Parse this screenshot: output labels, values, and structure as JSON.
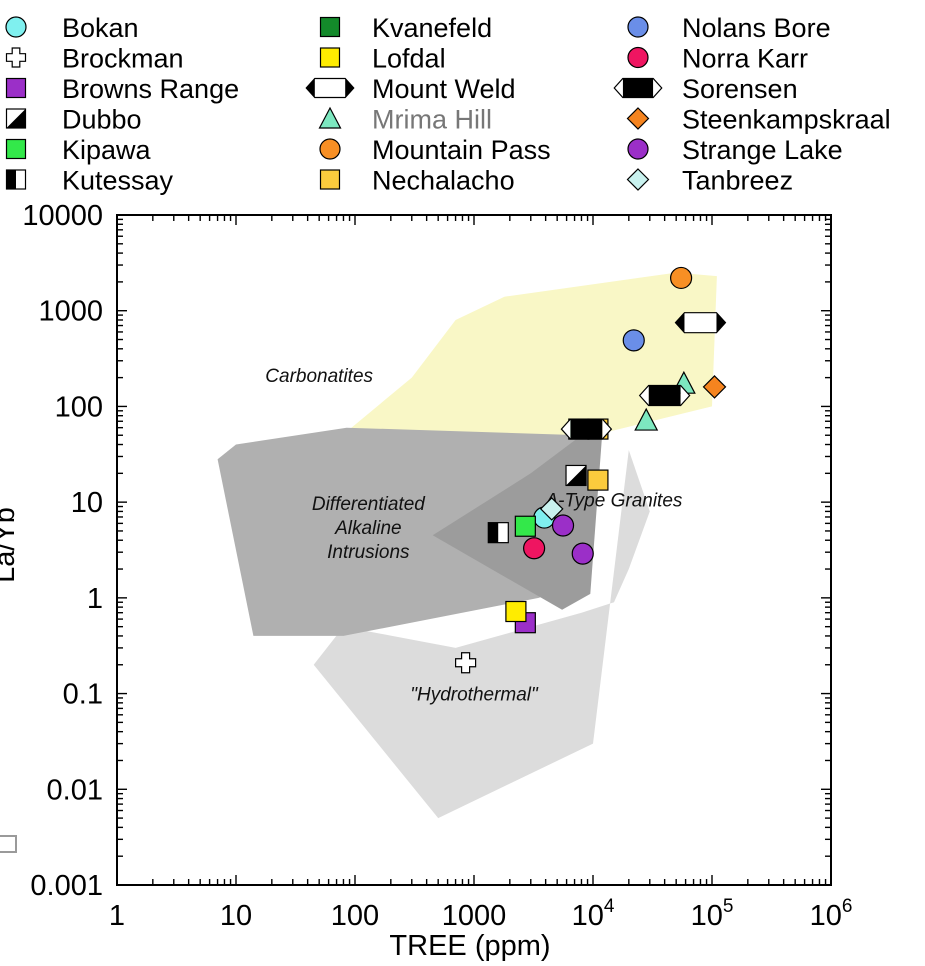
{
  "chart_data": {
    "type": "scatter",
    "xlabel": "TREE (ppm)",
    "ylabel": "La/Yb",
    "xscale": "log",
    "yscale": "log",
    "xlim": [
      1,
      1000000
    ],
    "ylim": [
      0.001,
      10000
    ],
    "x_ticks": [
      {
        "value": 1,
        "label": "1"
      },
      {
        "value": 10,
        "label": "10"
      },
      {
        "value": 100,
        "label": "100"
      },
      {
        "value": 1000,
        "label": "1000"
      },
      {
        "value": 10000,
        "base": "10",
        "exp": "4"
      },
      {
        "value": 100000,
        "base": "10",
        "exp": "5"
      },
      {
        "value": 1000000,
        "base": "10",
        "exp": "6"
      }
    ],
    "y_ticks": [
      {
        "value": 0.001,
        "label": "0.001"
      },
      {
        "value": 0.01,
        "label": "0.01"
      },
      {
        "value": 0.1,
        "label": "0.1"
      },
      {
        "value": 1,
        "label": "1"
      },
      {
        "value": 10,
        "label": "10"
      },
      {
        "value": 100,
        "label": "100"
      },
      {
        "value": 1000,
        "label": "1000"
      },
      {
        "value": 10000,
        "label": "10000"
      }
    ],
    "legend_position": "top",
    "regions": [
      {
        "name": "Carbonatites",
        "color": "#f9f7c6",
        "label_at": [
          50,
          180
        ],
        "polygon": [
          [
            40,
            25
          ],
          [
            300,
            200
          ],
          [
            700,
            800
          ],
          [
            1800,
            1400
          ],
          [
            50000,
            2500
          ],
          [
            110000,
            2300
          ],
          [
            100000,
            100
          ],
          [
            14000,
            55
          ],
          [
            8000,
            45
          ],
          [
            5000,
            20
          ],
          [
            1000,
            15
          ],
          [
            150,
            14
          ],
          [
            40,
            25
          ]
        ]
      },
      {
        "name": "Hydrothermal",
        "display": "\"Hydrothermal\"",
        "color": "#dcdcdc",
        "label_at": [
          1000,
          0.085
        ],
        "polygon": [
          [
            500,
            0.005
          ],
          [
            10000,
            0.03
          ],
          [
            20000,
            35
          ],
          [
            30000,
            8
          ],
          [
            20000,
            2
          ],
          [
            15000,
            0.9
          ],
          [
            8000,
            0.7
          ],
          [
            700,
            0.3
          ],
          [
            80,
            0.5
          ],
          [
            45,
            0.2
          ],
          [
            500,
            0.005
          ]
        ]
      },
      {
        "name": "Differentiated Alkaline Intrusions",
        "display_lines": [
          "Differentiated",
          "Alkaline",
          "Intrusions"
        ],
        "color": "#b0b0b0",
        "label_at": [
          25,
          10
        ],
        "polygon": [
          [
            7,
            28
          ],
          [
            10,
            40
          ],
          [
            85,
            60
          ],
          [
            8000,
            50
          ],
          [
            8000,
            1.5
          ],
          [
            3500,
            1
          ],
          [
            80,
            0.4
          ],
          [
            14,
            0.4
          ],
          [
            7,
            28
          ]
        ]
      },
      {
        "name": "A-Type Granites",
        "color": "#9c9c9c",
        "label_at": [
          15000,
          9
        ],
        "polygon": [
          [
            450,
            4.5
          ],
          [
            3000,
            20
          ],
          [
            8000,
            50
          ],
          [
            12000,
            55
          ],
          [
            9500,
            1.1
          ],
          [
            5500,
            0.75
          ],
          [
            450,
            4.5
          ]
        ]
      }
    ],
    "series": [
      {
        "name": "Bokan",
        "marker": "circle",
        "fill": "#7ff0ef",
        "fill2": "",
        "points": [
          [
            3900,
            6.9
          ]
        ]
      },
      {
        "name": "Brockman",
        "marker": "plus",
        "fill": "#ffffff",
        "fill2": "",
        "points": [
          [
            850,
            0.21
          ]
        ]
      },
      {
        "name": "Browns Range",
        "marker": "square",
        "fill": "#9b2fc8",
        "fill2": "",
        "points": [
          [
            2700,
            0.55
          ]
        ]
      },
      {
        "name": "Dubbo",
        "marker": "square-diag",
        "fill": "#ffffff",
        "fill2": "#000000",
        "points": [
          [
            7200,
            19
          ]
        ]
      },
      {
        "name": "Kipawa",
        "marker": "square",
        "fill": "#33e84a",
        "fill2": "",
        "points": [
          [
            2700,
            5.6
          ]
        ]
      },
      {
        "name": "Kutessay",
        "marker": "square-half",
        "fill": "#000000",
        "fill2": "#ffffff",
        "points": [
          [
            1600,
            4.8
          ]
        ]
      },
      {
        "name": "Kvanefeld",
        "marker": "square",
        "fill": "#138a2a",
        "fill2": "",
        "points": [
          [
            7600,
            58
          ]
        ]
      },
      {
        "name": "Lofdal",
        "marker": "square",
        "fill": "#ffec00",
        "fill2": "",
        "points": [
          [
            2250,
            0.72
          ]
        ]
      },
      {
        "name": "Mount Weld",
        "marker": "hex",
        "fill": "#ffffff",
        "fill2": "#000000",
        "points": [
          [
            80000,
            750
          ]
        ]
      },
      {
        "name": "Mrima Hill",
        "marker": "triangle",
        "fill": "#7de8c0",
        "fill2": "",
        "points": [
          [
            28000,
            72
          ],
          [
            58000,
            175
          ]
        ]
      },
      {
        "name": "Mountain Pass",
        "marker": "circle",
        "fill": "#f78f24",
        "fill2": "",
        "points": [
          [
            55000,
            2200
          ]
        ]
      },
      {
        "name": "Nechalacho",
        "marker": "square",
        "fill": "#fbcb3d",
        "fill2": "",
        "points": [
          [
            11000,
            58
          ],
          [
            11000,
            17
          ]
        ]
      },
      {
        "name": "Nolans Bore",
        "marker": "circle",
        "fill": "#6a8ee8",
        "fill2": "",
        "points": [
          [
            22000,
            490
          ]
        ]
      },
      {
        "name": "Norra Karr",
        "marker": "circle",
        "fill": "#ef1561",
        "fill2": "",
        "points": [
          [
            3200,
            3.3
          ]
        ]
      },
      {
        "name": "Sorensen",
        "marker": "hex",
        "fill": "#000000",
        "fill2": "#ffffff",
        "points": [
          [
            8800,
            58
          ],
          [
            40000,
            130
          ]
        ]
      },
      {
        "name": "Steenkampskraal",
        "marker": "diamond",
        "fill": "#f5841f",
        "fill2": "",
        "points": [
          [
            105000,
            160
          ]
        ]
      },
      {
        "name": "Strange Lake",
        "marker": "circle",
        "fill": "#9b2fc8",
        "fill2": "",
        "points": [
          [
            5600,
            5.7
          ],
          [
            8200,
            2.9
          ]
        ]
      },
      {
        "name": "Tanbreez",
        "marker": "diamond",
        "fill": "#c9f2ef",
        "fill2": "",
        "points": [
          [
            4500,
            8.5
          ]
        ]
      }
    ]
  }
}
